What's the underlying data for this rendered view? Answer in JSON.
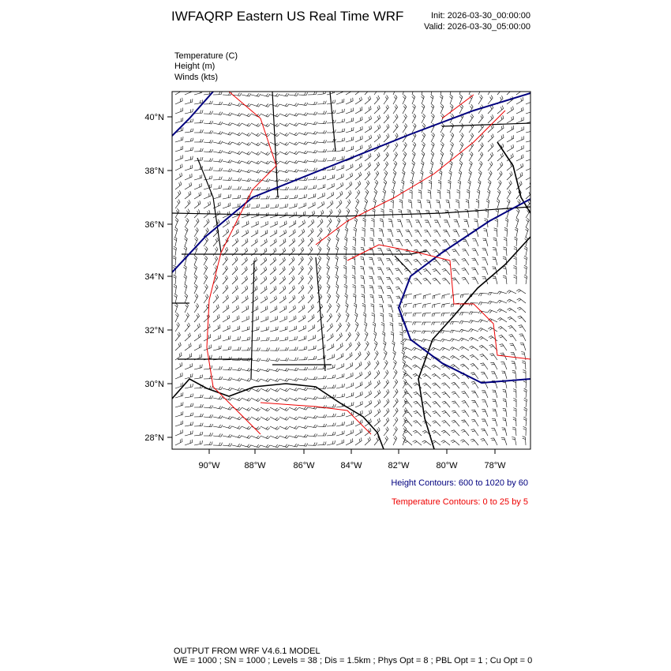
{
  "header": {
    "title": "IWFAQRP Eastern US Real Time WRF",
    "init": "Init: 2026-03-30_00:00:00",
    "valid": "Valid: 2026-03-30_05:00:00"
  },
  "fields": [
    "Temperature   (C)",
    "Height   (m)",
    "Winds   (kts)"
  ],
  "map": {
    "lat_labels": [
      "40°N",
      "38°N",
      "36°N",
      "34°N",
      "32°N",
      "30°N",
      "28°N"
    ],
    "lon_labels": [
      "90°W",
      "88°W",
      "86°W",
      "84°W",
      "82°W",
      "80°W",
      "78°W"
    ]
  },
  "contours": {
    "height": "Height Contours: 600 to 1020 by 60",
    "temperature": "Temperature Contours: 0 to 25 by 5"
  },
  "footer": {
    "model": "OUTPUT FROM WRF V4.6.1 MODEL",
    "settings": "WE = 1000 ; SN = 1000 ; Levels = 38 ; Dis = 1.5km ; Phys Opt = 8 ; PBL Opt = 1 ; Cu Opt = 0"
  }
}
